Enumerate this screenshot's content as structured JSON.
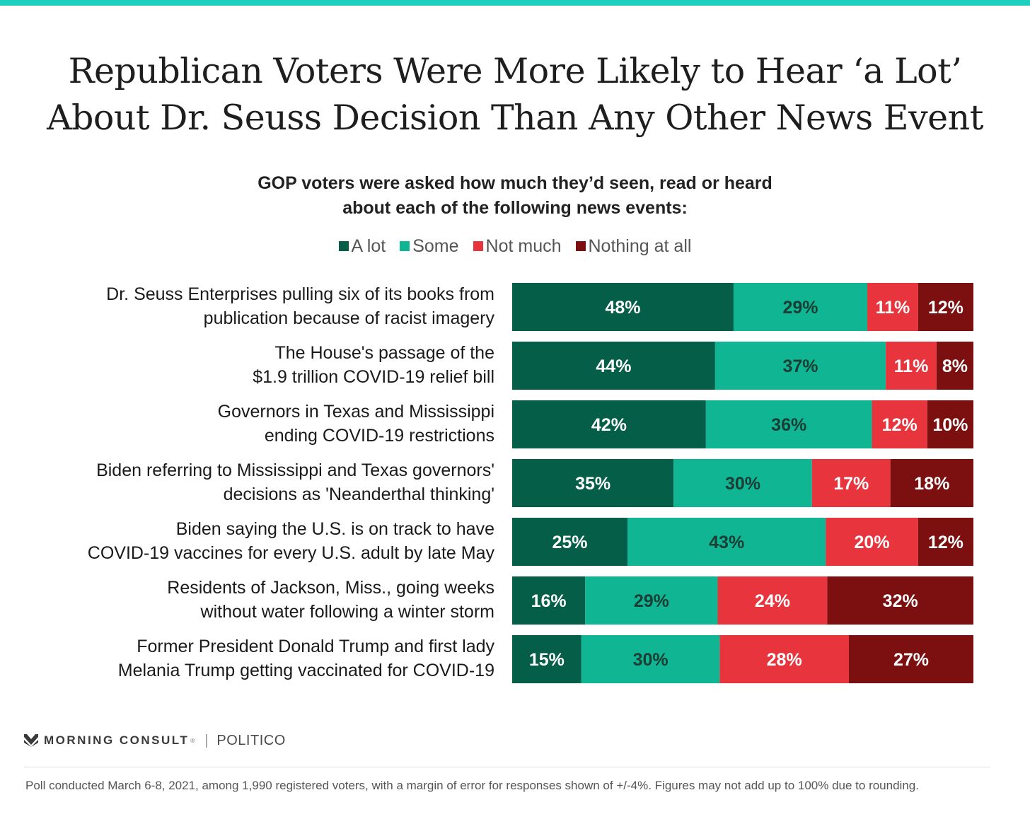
{
  "header": {
    "title_line1": "Republican Voters Were More Likely to Hear ‘a Lot’",
    "title_line2": "About Dr. Seuss Decision Than Any Other News Event",
    "subtitle_line1": "GOP voters were asked how much they’d seen, read or heard",
    "subtitle_line2": "about each of the following news events:"
  },
  "colors": {
    "accent_rule": "#1ecfc0",
    "a_lot": "#045e48",
    "some": "#10b594",
    "not_much": "#e8343d",
    "nothing_at_all": "#7c1010"
  },
  "chart_data": {
    "type": "bar",
    "orientation": "horizontal",
    "stacked": true,
    "xlim": [
      0,
      100
    ],
    "unit": "%",
    "legend_position": "top-center",
    "grid": false,
    "categories": [
      [
        "Dr. Seuss Enterprises pulling six of its books from",
        "publication because of racist imagery"
      ],
      [
        "The House's passage of the",
        "$1.9 trillion COVID-19 relief bill"
      ],
      [
        "Governors in Texas and Mississippi",
        "ending COVID-19 restrictions"
      ],
      [
        "Biden referring to Mississippi and Texas governors'",
        "decisions as 'Neanderthal thinking'"
      ],
      [
        "Biden saying the U.S. is on track to have",
        "COVID-19 vaccines for every U.S. adult by late May"
      ],
      [
        "Residents of Jackson, Miss., going weeks",
        "without water following a winter storm"
      ],
      [
        "Former President Donald Trump and first lady",
        "Melania Trump getting vaccinated for COVID-19"
      ]
    ],
    "series": [
      {
        "name": "A lot",
        "values": [
          48,
          44,
          42,
          35,
          25,
          16,
          15
        ],
        "label_color": "#ffffff"
      },
      {
        "name": "Some",
        "values": [
          29,
          37,
          36,
          30,
          43,
          29,
          30
        ],
        "label_color": "#1c3d33"
      },
      {
        "name": "Not much",
        "values": [
          11,
          11,
          12,
          17,
          20,
          24,
          28
        ],
        "label_color": "#ffffff"
      },
      {
        "name": "Nothing at all",
        "values": [
          12,
          8,
          10,
          18,
          12,
          32,
          27
        ],
        "label_color": "#ffffff"
      }
    ]
  },
  "footer": {
    "brand": "MORNING CONSULT",
    "trademark": "®",
    "separator": "|",
    "partner": "POLITICO",
    "note": "Poll conducted March 6-8, 2021, among 1,990 registered voters, with a margin of error for responses shown of +/-4%. Figures may not add up to 100% due to rounding."
  }
}
